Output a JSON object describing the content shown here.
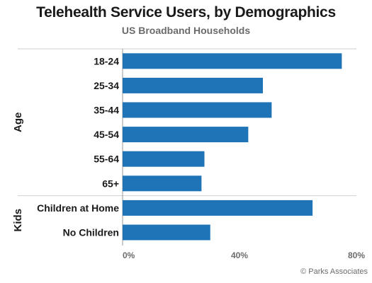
{
  "chart_data": {
    "type": "bar",
    "orientation": "horizontal",
    "title": "Telehealth Service Users, by Demographics",
    "subtitle": "US Broadband Households",
    "groups": [
      {
        "label": "Age",
        "categories": [
          "18-24",
          "25-34",
          "35-44",
          "45-54",
          "55-64",
          "65+"
        ]
      },
      {
        "label": "Kids",
        "categories": [
          "Children at Home",
          "No Children"
        ]
      }
    ],
    "categories": [
      "18-24",
      "25-34",
      "35-44",
      "45-54",
      "55-64",
      "65+",
      "Children at Home",
      "No Children"
    ],
    "values": [
      75,
      48,
      51,
      43,
      28,
      27,
      65,
      30
    ],
    "xlim": [
      0,
      80
    ],
    "x_ticks": [
      "0%",
      "40%",
      "80%"
    ],
    "x_tick_values": [
      0,
      40,
      80
    ],
    "grid": false,
    "bar_color": "#1f73b7"
  },
  "copyright": "© Parks Associates"
}
